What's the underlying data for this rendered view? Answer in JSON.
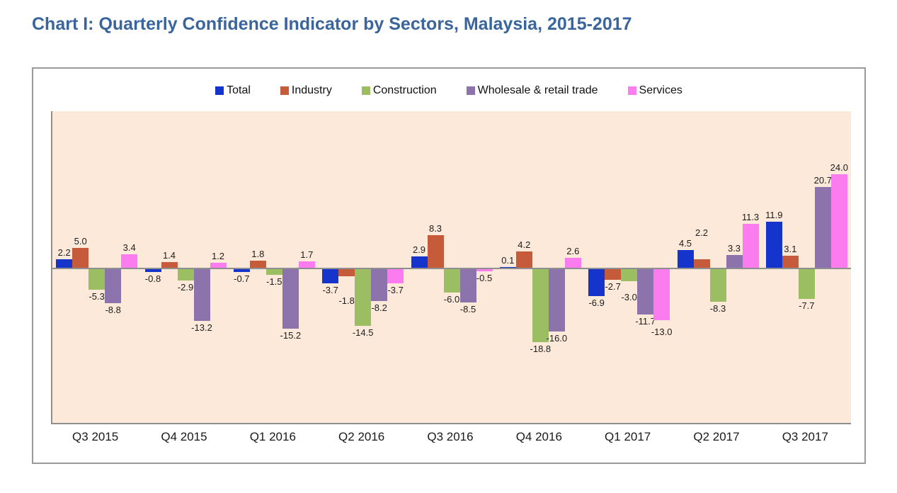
{
  "page": {
    "title": "Chart I: Quarterly Confidence Indicator by Sectors, Malaysia, 2015-2017"
  },
  "colors": {
    "title_text": "#3A659C",
    "plot_background": "#FCE9D9",
    "axis_line": "#8F8F8F",
    "chart_border": "#9A9A9A",
    "data_label_text": "#1C1C1C",
    "legend_text": "#111111"
  },
  "chart_data": {
    "type": "bar",
    "title": "Chart I: Quarterly Confidence Indicator by Sectors, Malaysia, 2015-2017",
    "xlabel": "",
    "ylabel": "",
    "ylim": [
      -40,
      40
    ],
    "gridlines": false,
    "data_labels": true,
    "legend_position": "top-center",
    "plot_bg": "#FCE9D9",
    "categories": [
      "Q3 2015",
      "Q4 2015",
      "Q1 2016",
      "Q2 2016",
      "Q3 2016",
      "Q4 2016",
      "Q1 2017",
      "Q2 2017",
      "Q3 2017"
    ],
    "series": [
      {
        "name": "Total",
        "color": "#1434CC",
        "values": [
          2.2,
          -0.8,
          -0.7,
          -3.7,
          2.9,
          0.1,
          -6.9,
          4.5,
          11.9
        ]
      },
      {
        "name": "Industry",
        "color": "#C65B3C",
        "values": [
          5.0,
          1.4,
          1.8,
          -1.8,
          8.3,
          4.2,
          -2.7,
          2.2,
          3.1
        ]
      },
      {
        "name": "Construction",
        "color": "#9CBE63",
        "values": [
          -5.3,
          -2.9,
          -1.5,
          -14.5,
          -6.0,
          -18.8,
          -3.0,
          -8.3,
          -7.7
        ]
      },
      {
        "name": "Wholesale & retail trade",
        "color": "#8D73AC",
        "values": [
          -8.8,
          -13.2,
          -15.2,
          -8.2,
          -8.5,
          -16.0,
          -11.7,
          3.3,
          20.7
        ]
      },
      {
        "name": "Services",
        "color": "#FA7CEE",
        "values": [
          3.4,
          1.2,
          1.7,
          -3.7,
          -0.5,
          2.6,
          -13.0,
          11.3,
          24.0
        ]
      }
    ]
  }
}
